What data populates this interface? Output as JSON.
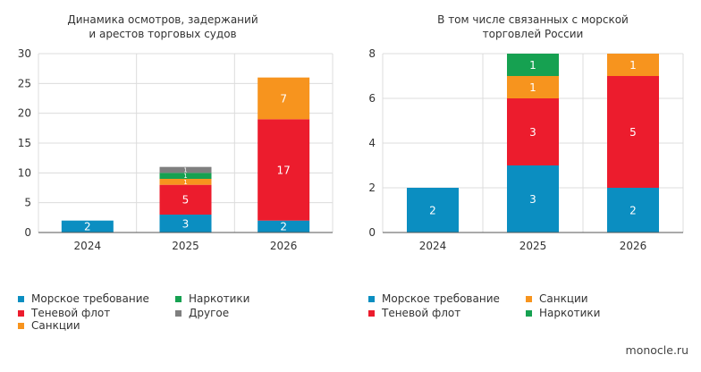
{
  "colors": {
    "axis_text": "#333333",
    "grid": "#dcdcdc",
    "axis_line": "#555555",
    "label_light": "#ffffff",
    "label_dark": "#222222"
  },
  "legend_left": [
    {
      "label": "Морское требование",
      "color": "#0b8ec1"
    },
    {
      "label": "Наркотики",
      "color": "#16a151"
    },
    {
      "label": "Теневой флот",
      "color": "#ec1c2d"
    },
    {
      "label": "Другое",
      "color": "#7f7f7f"
    },
    {
      "label": "Санкции",
      "color": "#f7941e"
    }
  ],
  "legend_right": [
    {
      "label": "Морское требование",
      "color": "#0b8ec1"
    },
    {
      "label": "Санкции",
      "color": "#f7941e"
    },
    {
      "label": "Теневой флот",
      "color": "#ec1c2d"
    },
    {
      "label": "Наркотики",
      "color": "#16a151"
    }
  ],
  "footer": "monocle.ru",
  "chart_data": [
    {
      "type": "bar",
      "stacked": true,
      "title": "Динамика осмотров, задержаний\nи арестов торговых судов",
      "unit": "ед.",
      "categories": [
        "2024",
        "2025",
        "2026"
      ],
      "ylim": [
        0,
        30
      ],
      "yticks": [
        0,
        5,
        10,
        15,
        20,
        25,
        30
      ],
      "grid": true,
      "series": [
        {
          "name": "Морское требование",
          "color": "#0b8ec1",
          "values": [
            2,
            3,
            2
          ],
          "labels": [
            "2",
            "3",
            "2"
          ]
        },
        {
          "name": "Теневой флот",
          "color": "#ec1c2d",
          "values": [
            0,
            5,
            17
          ],
          "labels": [
            "",
            "5",
            "17"
          ]
        },
        {
          "name": "Санкции",
          "color": "#f7941e",
          "values": [
            0,
            1,
            7
          ],
          "labels": [
            "",
            "1",
            "7"
          ]
        },
        {
          "name": "Наркотики",
          "color": "#16a151",
          "values": [
            0,
            1,
            0
          ],
          "labels": [
            "",
            "1",
            ""
          ]
        },
        {
          "name": "Другое",
          "color": "#7f7f7f",
          "values": [
            0,
            1,
            0
          ],
          "labels": [
            "",
            "1",
            ""
          ]
        }
      ]
    },
    {
      "type": "bar",
      "stacked": true,
      "title": "В том числе связанных с морской\nторговлей России",
      "unit": "ед.",
      "categories": [
        "2024",
        "2025",
        "2026"
      ],
      "ylim": [
        0,
        8
      ],
      "yticks": [
        0,
        2,
        4,
        6,
        8
      ],
      "grid": true,
      "series": [
        {
          "name": "Морское требование",
          "color": "#0b8ec1",
          "values": [
            2,
            3,
            2
          ],
          "labels": [
            "2",
            "3",
            "2"
          ]
        },
        {
          "name": "Теневой флот",
          "color": "#ec1c2d",
          "values": [
            0,
            3,
            5
          ],
          "labels": [
            "",
            "3",
            "5"
          ]
        },
        {
          "name": "Санкции",
          "color": "#f7941e",
          "values": [
            0,
            1,
            1
          ],
          "labels": [
            "",
            "1",
            "1"
          ]
        },
        {
          "name": "Наркотики",
          "color": "#16a151",
          "values": [
            0,
            1,
            0
          ],
          "labels": [
            "",
            "1",
            ""
          ]
        }
      ]
    }
  ]
}
